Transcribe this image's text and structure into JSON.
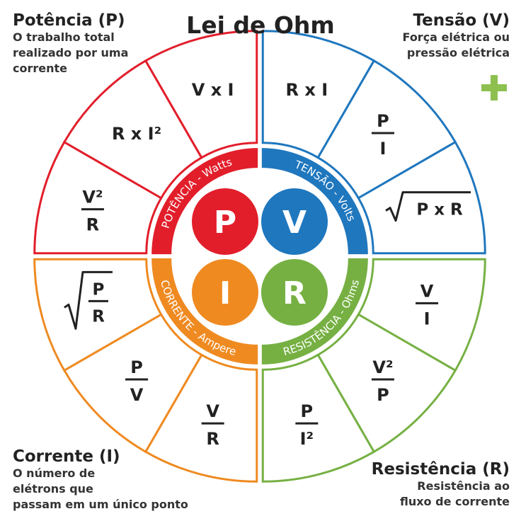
{
  "title": "Lei de Ohm",
  "colors": {
    "power": "#e21e2b",
    "voltage": "#1f77be",
    "current": "#ef8a21",
    "resistance": "#76b043",
    "accent_plus": "#8dc04f"
  },
  "corners": {
    "power": {
      "heading": "Potência (P)",
      "lines": [
        "O trabalho total",
        "realizado por uma",
        "corrente"
      ]
    },
    "voltage": {
      "heading": "Tensão (V)",
      "lines": [
        "Força elétrica ou",
        "pressão elétrica"
      ]
    },
    "current": {
      "heading": "Corrente (I)",
      "lines": [
        "O número de",
        "elétrons que",
        "passam em um único ponto"
      ]
    },
    "resistance": {
      "heading": "Resistência (R)",
      "lines": [
        "Resistência ao",
        "fluxo de corrente"
      ]
    }
  },
  "center": {
    "power": {
      "letter": "P",
      "band": "POTÊNCIA - Watts"
    },
    "voltage": {
      "letter": "V",
      "band": "TENSÃO - Volts"
    },
    "current": {
      "letter": "I",
      "band": "CORRENTE - Ampere"
    },
    "resistance": {
      "letter": "R",
      "band": "RESISTÊNCIA - Ohms"
    }
  },
  "formulas": {
    "power": [
      {
        "kind": "frac",
        "num": "V²",
        "den": "R"
      },
      {
        "kind": "text",
        "text": "R x I²"
      },
      {
        "kind": "text",
        "text": "V x I"
      }
    ],
    "voltage": [
      {
        "kind": "text",
        "text": "R x I"
      },
      {
        "kind": "frac",
        "num": "P",
        "den": "I"
      },
      {
        "kind": "sqrt",
        "text": "P x R"
      }
    ],
    "resistance": [
      {
        "kind": "frac",
        "num": "V",
        "den": "I"
      },
      {
        "kind": "frac",
        "num": "V²",
        "den": "P"
      },
      {
        "kind": "frac",
        "num": "P",
        "den": "I²"
      }
    ],
    "current": [
      {
        "kind": "frac",
        "num": "V",
        "den": "R"
      },
      {
        "kind": "frac",
        "num": "P",
        "den": "V"
      },
      {
        "kind": "sqrtfrac",
        "num": "P",
        "den": "R"
      }
    ]
  }
}
